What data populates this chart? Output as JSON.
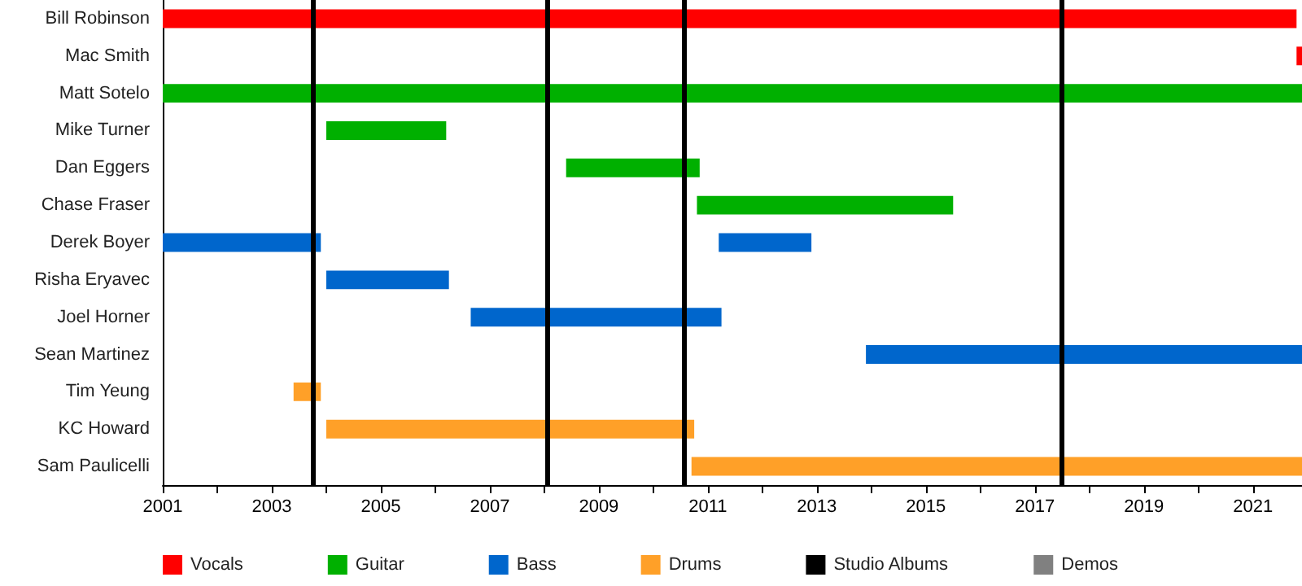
{
  "chart_data": {
    "type": "bar",
    "orientation": "horizontal",
    "categories": [
      "Bill Robinson",
      "Mac Smith",
      "Matt Sotelo",
      "Mike Turner",
      "Dan Eggers",
      "Chase Fraser",
      "Derek Boyer",
      "Risha Eryavec",
      "Joel Horner",
      "Sean Martinez",
      "Tim Yeung",
      "KC Howard",
      "Sam Paulicelli"
    ],
    "series": [
      {
        "name": "Vocals",
        "color": "#ff0000",
        "base": [
          2001,
          2021.8,
          null,
          null,
          null,
          null,
          null,
          null,
          null,
          null,
          null,
          null,
          null
        ],
        "values": [
          20.8,
          0.1,
          null,
          null,
          null,
          null,
          null,
          null,
          null,
          null,
          null,
          null,
          null
        ]
      },
      {
        "name": "Guitar",
        "color": "#00b000",
        "base": [
          null,
          null,
          2001,
          2004,
          2008.4,
          2010.8,
          null,
          null,
          null,
          null,
          null,
          null,
          null
        ],
        "values": [
          null,
          null,
          20.9,
          2.2,
          2.45,
          4.7,
          null,
          null,
          null,
          null,
          null,
          null,
          null
        ]
      },
      {
        "name": "Bass",
        "color": "#0066cc",
        "base": [
          null,
          null,
          null,
          null,
          null,
          null,
          2001,
          2004,
          2006.65,
          2013.9,
          null,
          null,
          null
        ],
        "values": [
          null,
          null,
          null,
          null,
          null,
          null,
          2.9,
          2.25,
          4.6,
          8.0,
          null,
          null,
          null
        ]
      },
      {
        "color": "#0066cc",
        "base": [
          null,
          null,
          null,
          null,
          null,
          null,
          2011.2,
          null,
          null,
          null,
          null,
          null,
          null
        ],
        "values": [
          null,
          null,
          null,
          null,
          null,
          null,
          1.7,
          null,
          null,
          null,
          null,
          null,
          null
        ]
      },
      {
        "name": "Drums",
        "color": "#ffa028",
        "base": [
          null,
          null,
          null,
          null,
          null,
          null,
          null,
          null,
          null,
          null,
          2003.4,
          2004,
          2010.7
        ],
        "values": [
          null,
          null,
          null,
          null,
          null,
          null,
          null,
          null,
          null,
          null,
          0.5,
          6.75,
          11.2
        ]
      },
      {
        "name": "Demos",
        "color": "#808080",
        "base": [
          null,
          null,
          null,
          null,
          null,
          null,
          null,
          null,
          null,
          null,
          null,
          null,
          null
        ],
        "values": [
          null,
          null,
          null,
          null,
          null,
          null,
          null,
          null,
          null,
          null,
          null,
          null,
          null
        ]
      }
    ],
    "ref_lines": [
      {
        "axis": "x",
        "value": 2003.75,
        "label": "Studio Albums",
        "color": "#000000",
        "line_style": "solid"
      },
      {
        "axis": "x",
        "value": 2008.05,
        "color": "#000000",
        "line_style": "solid"
      },
      {
        "axis": "x",
        "value": 2010.55,
        "color": "#000000",
        "line_style": "solid"
      },
      {
        "axis": "x",
        "value": 2017.5,
        "color": "#000000",
        "line_style": "solid"
      }
    ],
    "xlim": [
      2001,
      2021.9
    ],
    "xticks": [
      2001,
      {
        "value": 2002,
        "label": null
      },
      2003,
      {
        "value": 2004,
        "label": null
      },
      2005,
      {
        "value": 2006,
        "label": null
      },
      2007,
      {
        "value": 2008,
        "label": null
      },
      2009,
      {
        "value": 2010,
        "label": null
      },
      2011,
      {
        "value": 2012,
        "label": null
      },
      2013,
      {
        "value": 2014,
        "label": null
      },
      2015,
      {
        "value": 2016,
        "label": null
      },
      2017,
      {
        "value": 2018,
        "label": null
      },
      2019,
      {
        "value": 2020,
        "label": null
      },
      2021
    ],
    "grid": false,
    "legend": "bottom"
  }
}
